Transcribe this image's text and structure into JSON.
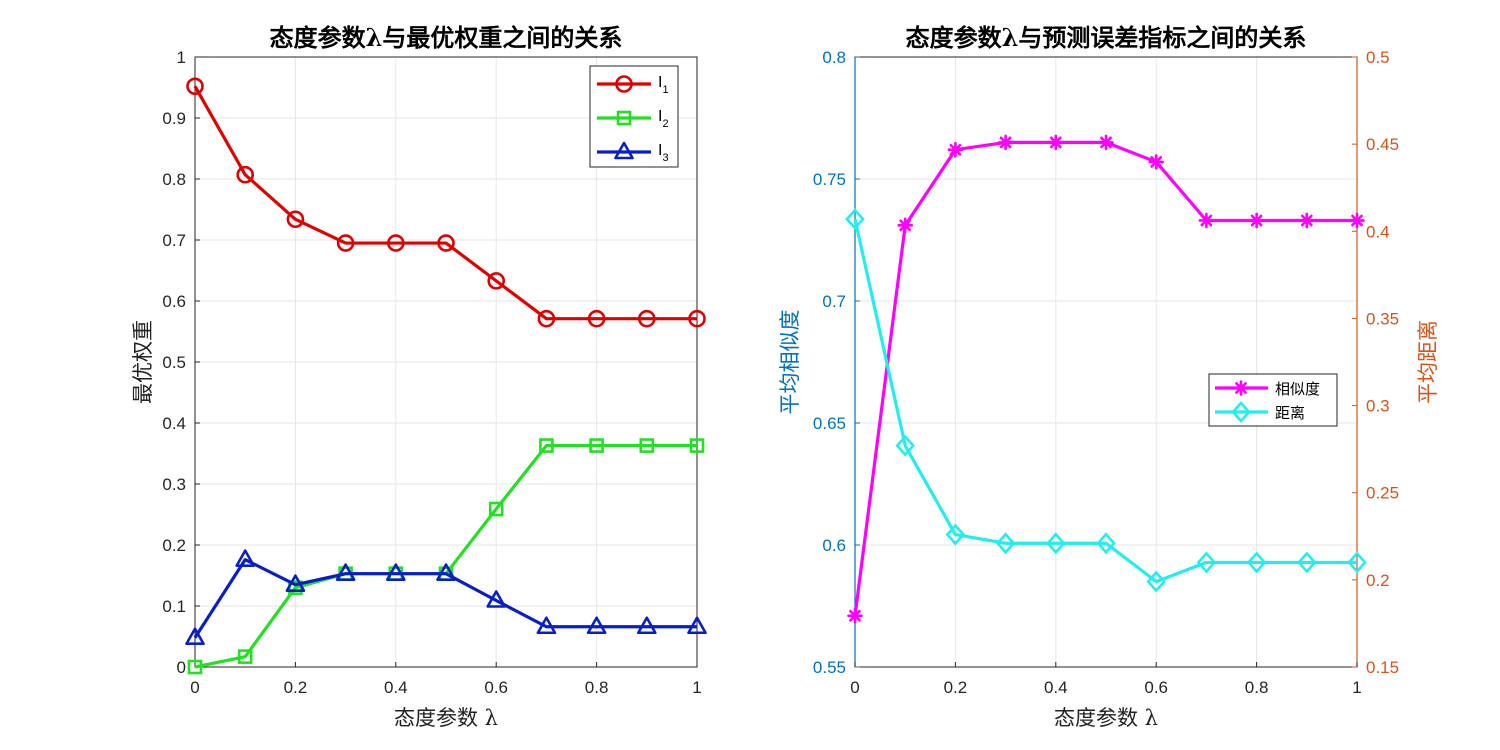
{
  "chart_data": [
    {
      "type": "line",
      "title": "态度参数λ与最优权重之间的关系",
      "xlabel": "态度参数 λ",
      "ylabel": "最优权重",
      "xlim": [
        0,
        1
      ],
      "ylim": [
        0,
        1
      ],
      "xticks": [
        "0",
        "0.2",
        "0.4",
        "0.6",
        "0.8",
        "1"
      ],
      "yticks": [
        "0",
        "0.1",
        "0.2",
        "0.3",
        "0.4",
        "0.5",
        "0.6",
        "0.7",
        "0.8",
        "0.9",
        "1"
      ],
      "grid": true,
      "legend_position": "top-right",
      "x": [
        0,
        0.1,
        0.2,
        0.3,
        0.4,
        0.5,
        0.6,
        0.7,
        0.8,
        0.9,
        1.0
      ],
      "series": [
        {
          "name": "I",
          "sub": "1",
          "color": "#e00000",
          "marker": "circle",
          "values": [
            0.952,
            0.807,
            0.734,
            0.695,
            0.695,
            0.695,
            0.633,
            0.571,
            0.571,
            0.571,
            0.571
          ]
        },
        {
          "name": "I",
          "sub": "2",
          "color": "#22e022",
          "marker": "square",
          "values": [
            0.0,
            0.017,
            0.13,
            0.153,
            0.153,
            0.153,
            0.259,
            0.363,
            0.363,
            0.363,
            0.363
          ]
        },
        {
          "name": "I",
          "sub": "3",
          "color": "#0a1ec8",
          "marker": "triangle",
          "values": [
            0.048,
            0.176,
            0.135,
            0.153,
            0.153,
            0.153,
            0.109,
            0.066,
            0.066,
            0.066,
            0.066
          ]
        }
      ]
    },
    {
      "type": "line",
      "title": "态度参数λ与预测误差指标之间的关系",
      "xlabel": "态度参数 λ",
      "ylabel_left": "平均相似度",
      "ylabel_right": "平均距离",
      "xlim": [
        0,
        1
      ],
      "ylim_left": [
        0.55,
        0.8
      ],
      "ylim_right": [
        0.15,
        0.5
      ],
      "xticks": [
        "0",
        "0.2",
        "0.4",
        "0.6",
        "0.8",
        "1"
      ],
      "yticks_left": [
        "0.55",
        "0.6",
        "0.65",
        "0.7",
        "0.75",
        "0.8"
      ],
      "yticks_right": [
        "0.15",
        "0.2",
        "0.25",
        "0.3",
        "0.35",
        "0.4",
        "0.45",
        "0.5"
      ],
      "grid": true,
      "legend_position": "right-middle",
      "left_axis_color": "#0072bd",
      "right_axis_color": "#d95319",
      "x": [
        0,
        0.1,
        0.2,
        0.3,
        0.4,
        0.5,
        0.6,
        0.7,
        0.8,
        0.9,
        1.0
      ],
      "series": [
        {
          "name": "相似度",
          "axis": "left",
          "color": "#ff00ff",
          "marker": "asterisk",
          "values": [
            0.571,
            0.731,
            0.762,
            0.765,
            0.765,
            0.765,
            0.757,
            0.733,
            0.733,
            0.733,
            0.733
          ]
        },
        {
          "name": "距离",
          "axis": "right",
          "color": "#22eeee",
          "marker": "diamond",
          "values": [
            0.407,
            0.277,
            0.226,
            0.221,
            0.221,
            0.221,
            0.199,
            0.21,
            0.21,
            0.21,
            0.21
          ]
        }
      ]
    }
  ]
}
